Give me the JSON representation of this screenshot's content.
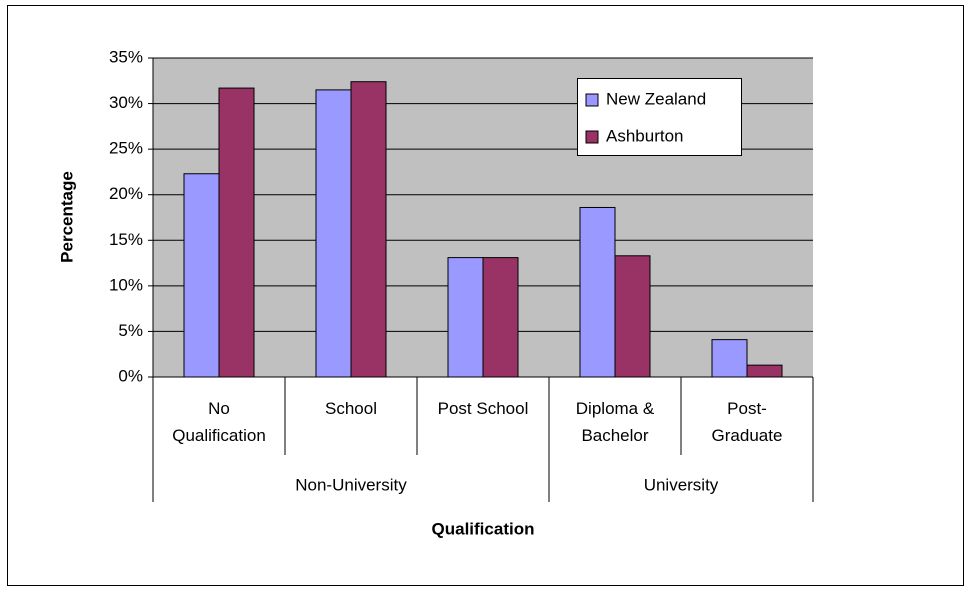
{
  "chart_data": {
    "type": "bar",
    "x_label": "Qualification",
    "y_label": "Percentage",
    "categories": [
      "No\nQualification",
      "School",
      "Post School",
      "Diploma &\nBachelor",
      "Post-\nGraduate"
    ],
    "category_groups": [
      "Non-University",
      "Non-University",
      "Non-University",
      "University",
      "University"
    ],
    "series": [
      {
        "name": "New Zealand",
        "color": "#9999ff",
        "values": [
          22.3,
          31.5,
          13.1,
          18.6,
          4.1
        ]
      },
      {
        "name": "Ashburton",
        "color": "#993366",
        "values": [
          31.7,
          32.4,
          13.1,
          13.3,
          1.3
        ]
      }
    ],
    "ylim": [
      0,
      35
    ],
    "yticks": [
      {
        "value": 0,
        "label": "0%"
      },
      {
        "value": 5,
        "label": "5%"
      },
      {
        "value": 10,
        "label": "10%"
      },
      {
        "value": 15,
        "label": "15%"
      },
      {
        "value": 20,
        "label": "20%"
      },
      {
        "value": 25,
        "label": "25%"
      },
      {
        "value": 30,
        "label": "30%"
      },
      {
        "value": 35,
        "label": "35%"
      }
    ],
    "grid": true,
    "legend": "upper right"
  }
}
